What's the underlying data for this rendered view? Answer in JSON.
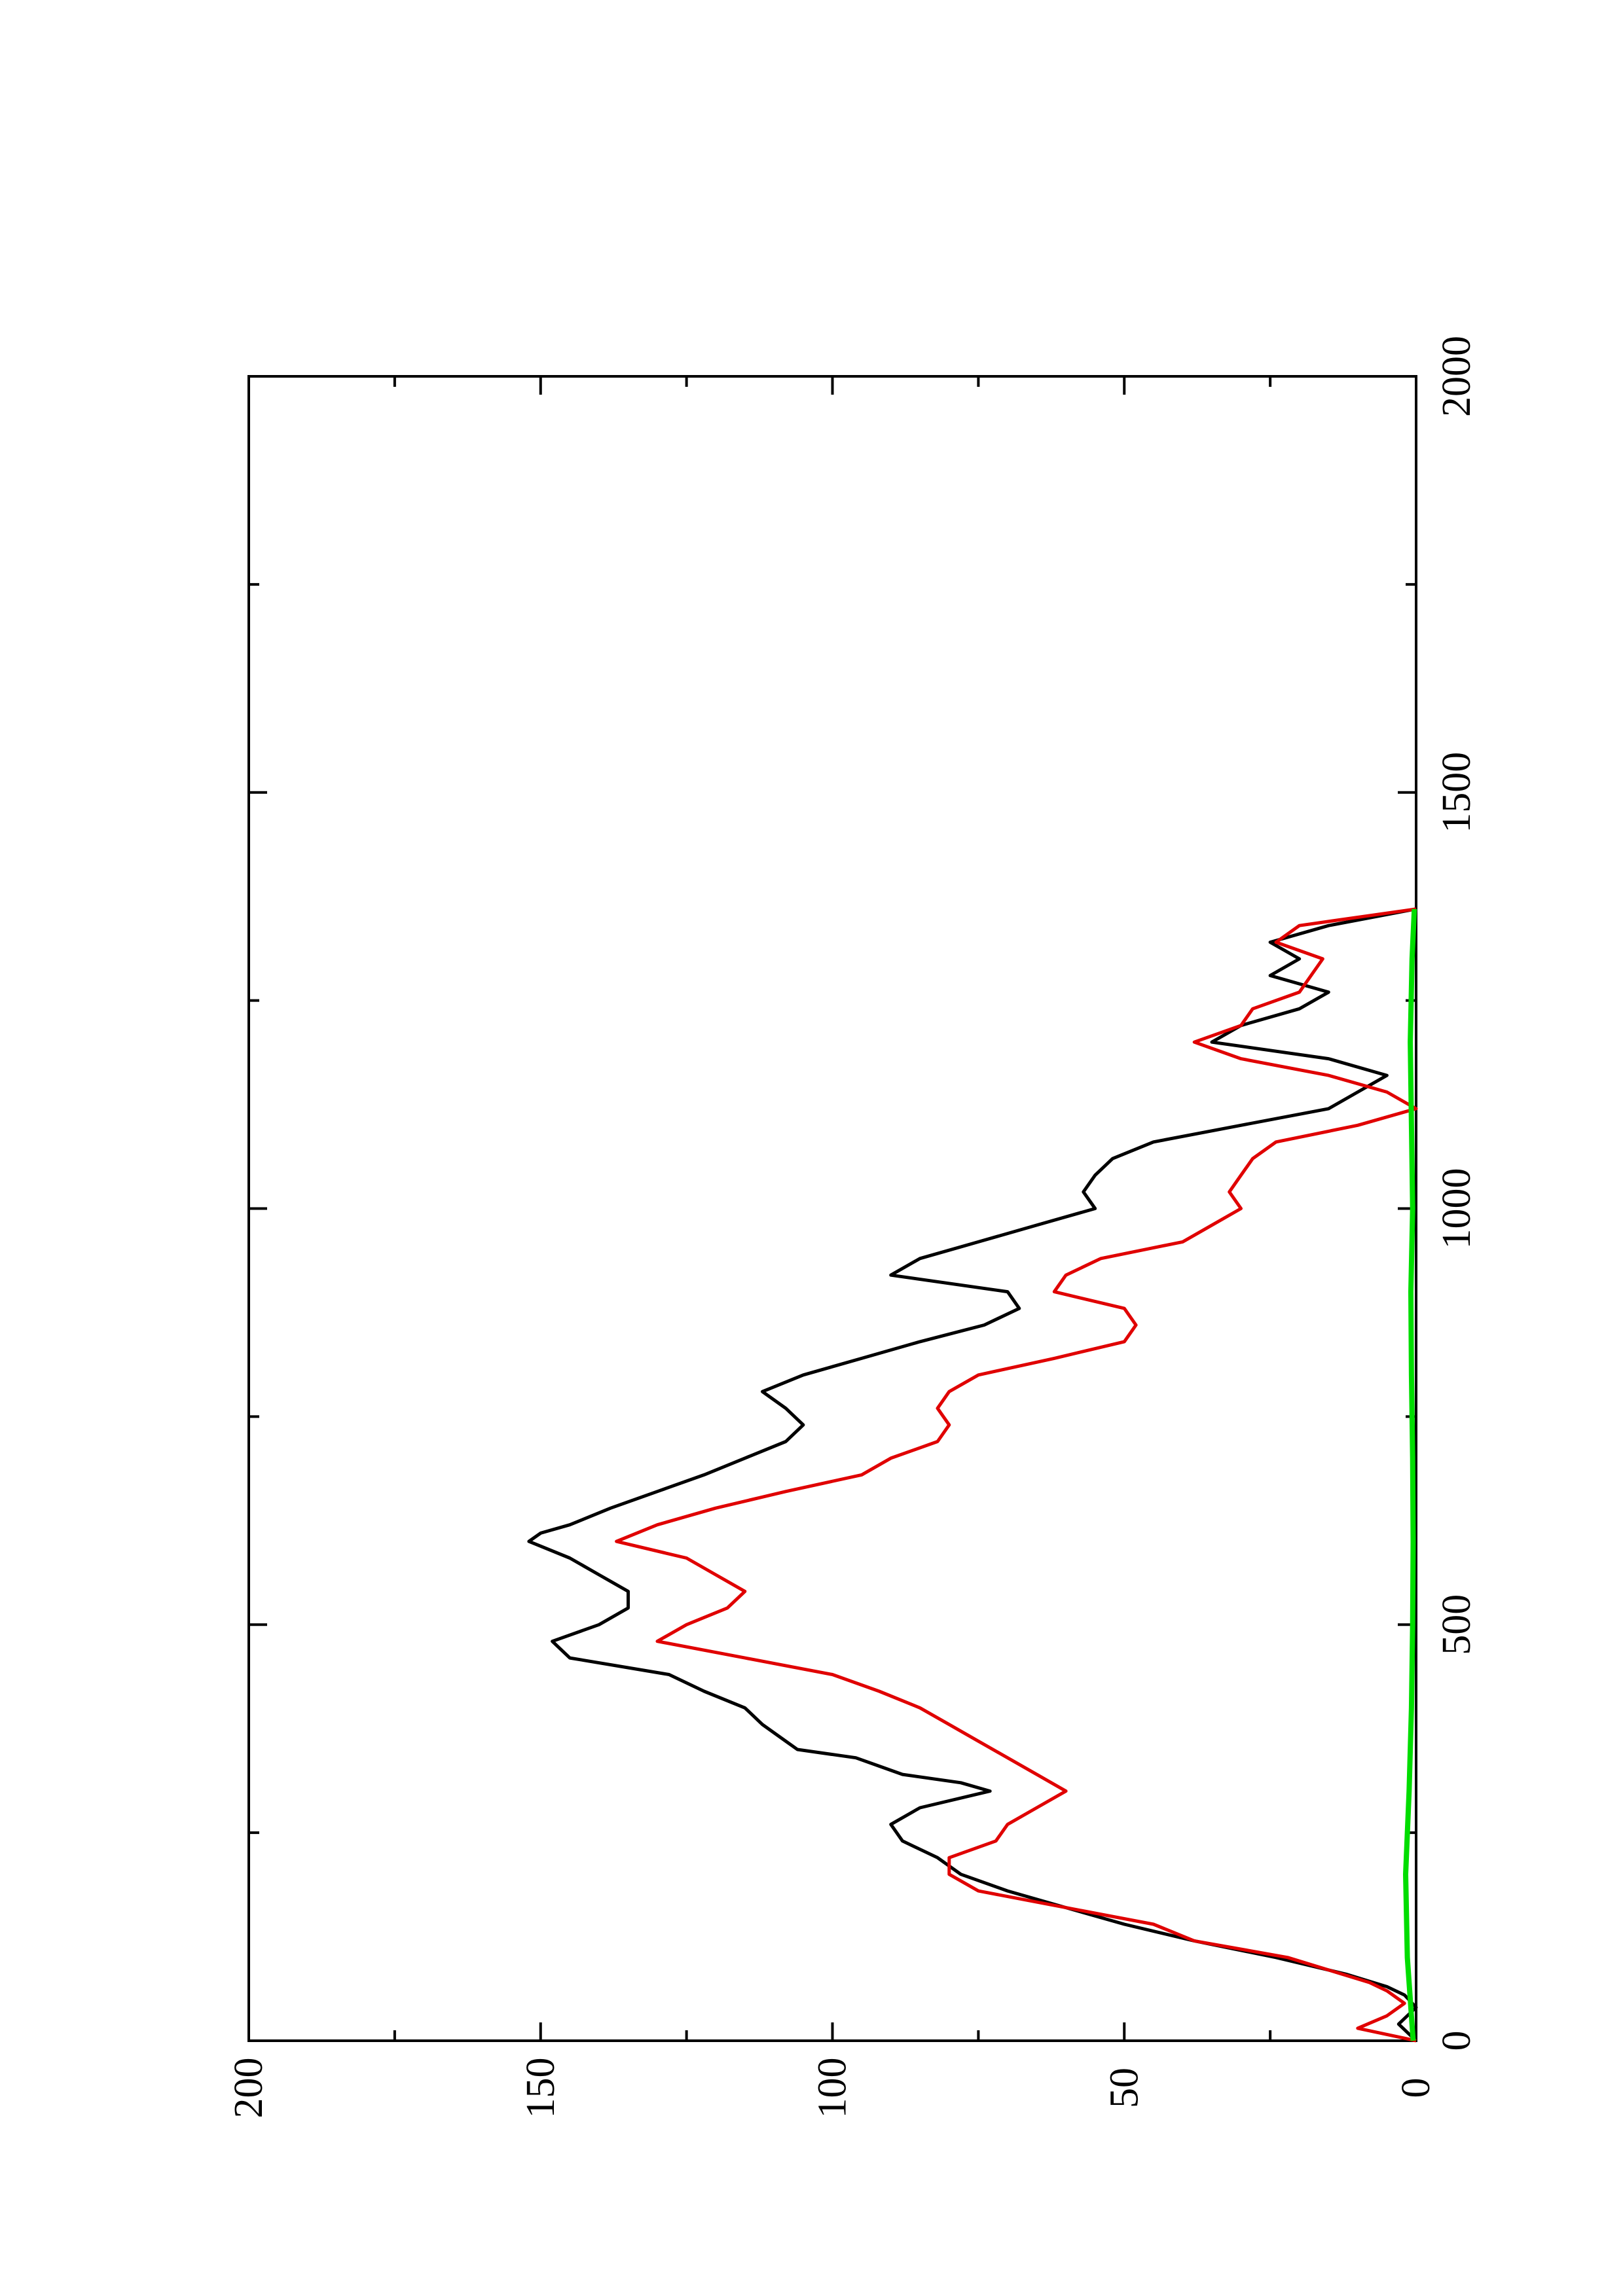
{
  "chart_data": {
    "type": "line",
    "orientation": "rotated-90-ccw",
    "title": "",
    "xlabel": "",
    "ylabel": "",
    "xlim": [
      0,
      2000
    ],
    "ylim": [
      0,
      200
    ],
    "x_ticks": [
      "0",
      "500",
      "1000",
      "1500",
      "2000"
    ],
    "y_ticks": [
      "0",
      "50",
      "100",
      "150",
      "200"
    ],
    "grid": false,
    "legend": "none",
    "series": [
      {
        "color": "#000000",
        "x": [
          0,
          20,
          40,
          55,
          65,
          80,
          100,
          120,
          140,
          160,
          180,
          200,
          220,
          240,
          260,
          280,
          300,
          310,
          320,
          330,
          340,
          350,
          360,
          380,
          400,
          420,
          440,
          460,
          480,
          500,
          520,
          540,
          560,
          580,
          600,
          610,
          620,
          640,
          660,
          680,
          700,
          720,
          740,
          760,
          780,
          800,
          820,
          840,
          860,
          880,
          900,
          920,
          940,
          960,
          980,
          1000,
          1020,
          1040,
          1060,
          1080,
          1100,
          1120,
          1140,
          1160,
          1180,
          1200,
          1220,
          1240,
          1260,
          1280,
          1300,
          1320,
          1340,
          1360
        ],
        "y": [
          0,
          3,
          0,
          2,
          5,
          12,
          24,
          38,
          50,
          60,
          70,
          78,
          82,
          88,
          90,
          85,
          73,
          78,
          88,
          92,
          96,
          106,
          108,
          112,
          115,
          122,
          128,
          145,
          148,
          140,
          135,
          135,
          140,
          145,
          152,
          150,
          145,
          138,
          130,
          122,
          115,
          108,
          105,
          108,
          112,
          105,
          95,
          85,
          74,
          68,
          70,
          90,
          85,
          75,
          65,
          55,
          57,
          55,
          52,
          45,
          30,
          15,
          10,
          5,
          15,
          35,
          30,
          20,
          15,
          25,
          20,
          25,
          15,
          0
        ]
      },
      {
        "color": "#e00000",
        "x": [
          0,
          15,
          30,
          45,
          60,
          70,
          85,
          100,
          120,
          140,
          160,
          180,
          200,
          220,
          240,
          260,
          280,
          300,
          320,
          340,
          360,
          380,
          400,
          420,
          440,
          460,
          480,
          500,
          520,
          540,
          560,
          580,
          600,
          620,
          640,
          660,
          680,
          700,
          720,
          740,
          760,
          780,
          800,
          820,
          840,
          860,
          880,
          900,
          920,
          940,
          960,
          980,
          1000,
          1020,
          1040,
          1060,
          1080,
          1100,
          1120,
          1140,
          1160,
          1180,
          1200,
          1220,
          1240,
          1260,
          1280,
          1300,
          1320,
          1340,
          1360
        ],
        "y": [
          0,
          10,
          5,
          2,
          5,
          8,
          15,
          22,
          38,
          45,
          60,
          75,
          80,
          80,
          72,
          70,
          65,
          60,
          65,
          70,
          75,
          80,
          85,
          92,
          100,
          115,
          130,
          125,
          118,
          115,
          120,
          125,
          137,
          130,
          120,
          108,
          95,
          90,
          82,
          80,
          82,
          80,
          75,
          62,
          50,
          48,
          50,
          62,
          60,
          54,
          40,
          35,
          30,
          32,
          30,
          28,
          24,
          10,
          0,
          5,
          15,
          30,
          38,
          30,
          28,
          20,
          18,
          16,
          24,
          20,
          0
        ]
      },
      {
        "color": "#00dd00",
        "x": [
          0,
          100,
          200,
          300,
          400,
          500,
          600,
          700,
          800,
          900,
          1000,
          1100,
          1200,
          1300,
          1360
        ],
        "y": [
          0.5,
          1.5,
          1.8,
          1.2,
          0.8,
          0.6,
          0.5,
          0.6,
          0.8,
          0.9,
          0.6,
          0.8,
          1.0,
          0.7,
          0.3
        ]
      }
    ]
  }
}
